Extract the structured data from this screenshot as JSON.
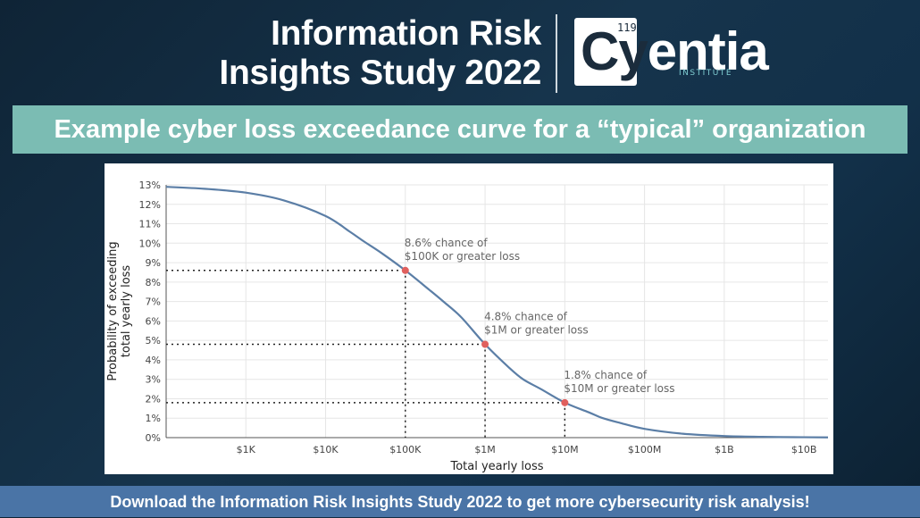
{
  "header": {
    "title_line1": "Information Risk",
    "title_line2": "Insights Study 2022",
    "logo_number": "119",
    "logo_word_a": "Cy",
    "logo_word_b": "entia",
    "logo_sub": "INSTITUTE"
  },
  "subtitle": "Example cyber loss exceedance curve for a “typical” organization",
  "footer": "Download the Information Risk Insights Study 2022 to get more cybersecurity risk analysis!",
  "colors": {
    "curve": "#5b7ea6",
    "marker": "#e0605e",
    "banner": "#7bbcb3",
    "footer": "#4a74a6"
  },
  "chart_data": {
    "type": "line",
    "xlabel": "Total yearly loss",
    "ylabel_lines": [
      "Probability of exceeding",
      "total yearly loss"
    ],
    "x_scale": "log10",
    "x_tick_labels": [
      "$1K",
      "$10K",
      "$100K",
      "$1M",
      "$10M",
      "$100M",
      "$1B",
      "$10B"
    ],
    "x_tick_values": [
      1000,
      10000,
      100000,
      1000000,
      10000000,
      100000000,
      1000000000,
      10000000000
    ],
    "xlim": [
      100,
      20000000000
    ],
    "y_tick_labels": [
      "0%",
      "1%",
      "2%",
      "3%",
      "4%",
      "5%",
      "6%",
      "7%",
      "8%",
      "9%",
      "10%",
      "11%",
      "12%",
      "13%"
    ],
    "ylim": [
      0,
      13
    ],
    "grid": true,
    "series": [
      {
        "x": [
          100,
          300,
          1000,
          3000,
          10000,
          20000,
          30000,
          50000,
          100000,
          200000,
          300000,
          500000,
          1000000,
          2000000,
          3000000,
          5000000,
          10000000,
          20000000,
          30000000,
          50000000,
          100000000,
          300000000,
          1000000000,
          3000000000,
          10000000000,
          20000000000
        ],
        "y": [
          12.9,
          12.8,
          12.6,
          12.2,
          11.4,
          10.6,
          10.1,
          9.5,
          8.6,
          7.6,
          7.0,
          6.2,
          4.8,
          3.6,
          3.0,
          2.5,
          1.8,
          1.3,
          1.0,
          0.75,
          0.45,
          0.2,
          0.08,
          0.04,
          0.02,
          0.01
        ]
      }
    ],
    "highlights": [
      {
        "x": 100000,
        "y": 8.6,
        "label_line1": "8.6% chance of",
        "label_line2": "$100K or greater loss"
      },
      {
        "x": 1000000,
        "y": 4.8,
        "label_line1": "4.8% chance of",
        "label_line2": "$1M or greater loss"
      },
      {
        "x": 10000000,
        "y": 1.8,
        "label_line1": "1.8% chance of",
        "label_line2": "$10M or greater loss"
      }
    ]
  }
}
